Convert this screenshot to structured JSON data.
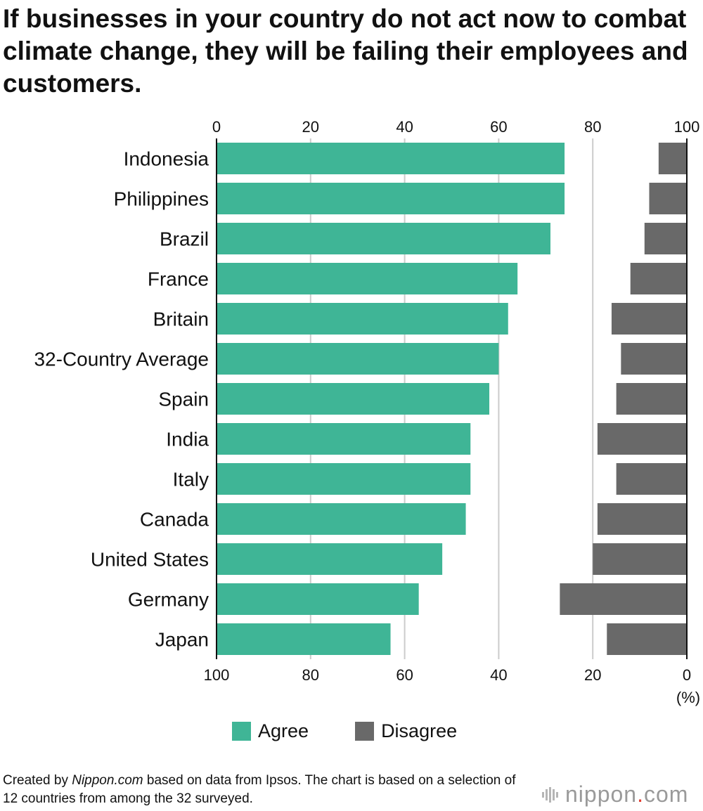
{
  "title": "If businesses in your country do not act now to combat climate change, they will be failing their employees and customers.",
  "legend": {
    "agree": "Agree",
    "disagree": "Disagree"
  },
  "footnote": {
    "prefix": "Created by ",
    "source_site": "Nippon.com",
    "suffix": " based on data from Ipsos. The chart is based on a selection of 12 countries from among the 32 surveyed."
  },
  "brand": {
    "name": "nippon",
    "dot": ".",
    "tld": "com"
  },
  "colors": {
    "agree": "#3fb596",
    "disagree": "#696969",
    "grid": "#cccccc",
    "axis": "#111111"
  },
  "chart_data": {
    "type": "bar",
    "orientation": "horizontal",
    "categories": [
      "Indonesia",
      "Philippines",
      "Brazil",
      "France",
      "Britain",
      "32-Country Average",
      "Spain",
      "India",
      "Italy",
      "Canada",
      "United States",
      "Germany",
      "Japan"
    ],
    "series": [
      {
        "name": "Agree",
        "direction": "from-left",
        "values": [
          74,
          74,
          71,
          64,
          62,
          60,
          58,
          54,
          54,
          53,
          48,
          43,
          37
        ]
      },
      {
        "name": "Disagree",
        "direction": "from-right",
        "values": [
          6,
          8,
          9,
          12,
          16,
          14,
          15,
          19,
          15,
          19,
          20,
          27,
          17
        ]
      }
    ],
    "top_axis_ticks": [
      "0",
      "20",
      "40",
      "60",
      "80",
      "100"
    ],
    "bottom_axis_ticks": [
      "100",
      "80",
      "60",
      "40",
      "20",
      "0"
    ],
    "unit_label": "(%)",
    "xlim": [
      0,
      100
    ],
    "grid": true,
    "legend_position": "bottom"
  }
}
